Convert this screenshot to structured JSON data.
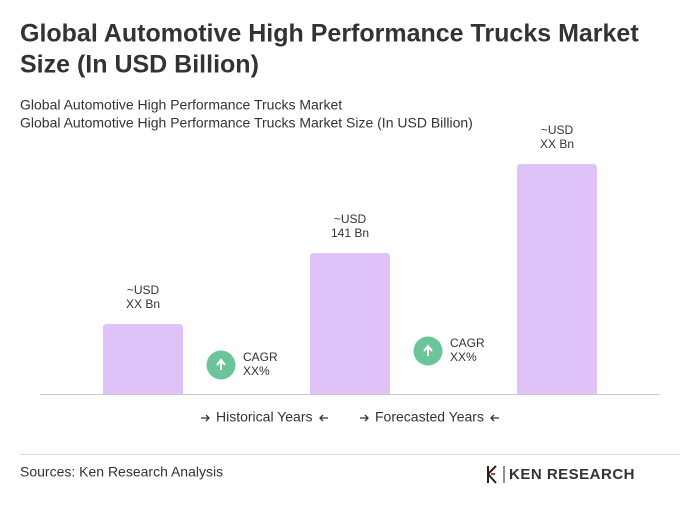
{
  "chart_data": {
    "type": "bar",
    "title": [
      "Global Automotive High Performance Trucks Market",
      "Size (In USD Billion)"
    ],
    "subtitle": [
      "Global Automotive High Performance Trucks Market",
      "Global Automotive High Performance Trucks Market Size (In USD Billion)"
    ],
    "values": [
      70,
      141,
      230
    ],
    "value_labels": [
      [
        "~USD",
        "XX Bn"
      ],
      [
        "~USD",
        "141 Bn"
      ],
      [
        "~USD",
        "XX Bn"
      ]
    ],
    "color": "#dfc3f8",
    "annotations": [
      [
        "CAGR",
        "XX%"
      ],
      [
        "CAGR",
        "XX%"
      ]
    ],
    "annotation_color": "#6cc49a",
    "legend": [
      "Historical Years",
      "Forecasted Years"
    ],
    "source": "Sources: Ken Research Analysis",
    "logo": "KEN RESEARCH"
  }
}
